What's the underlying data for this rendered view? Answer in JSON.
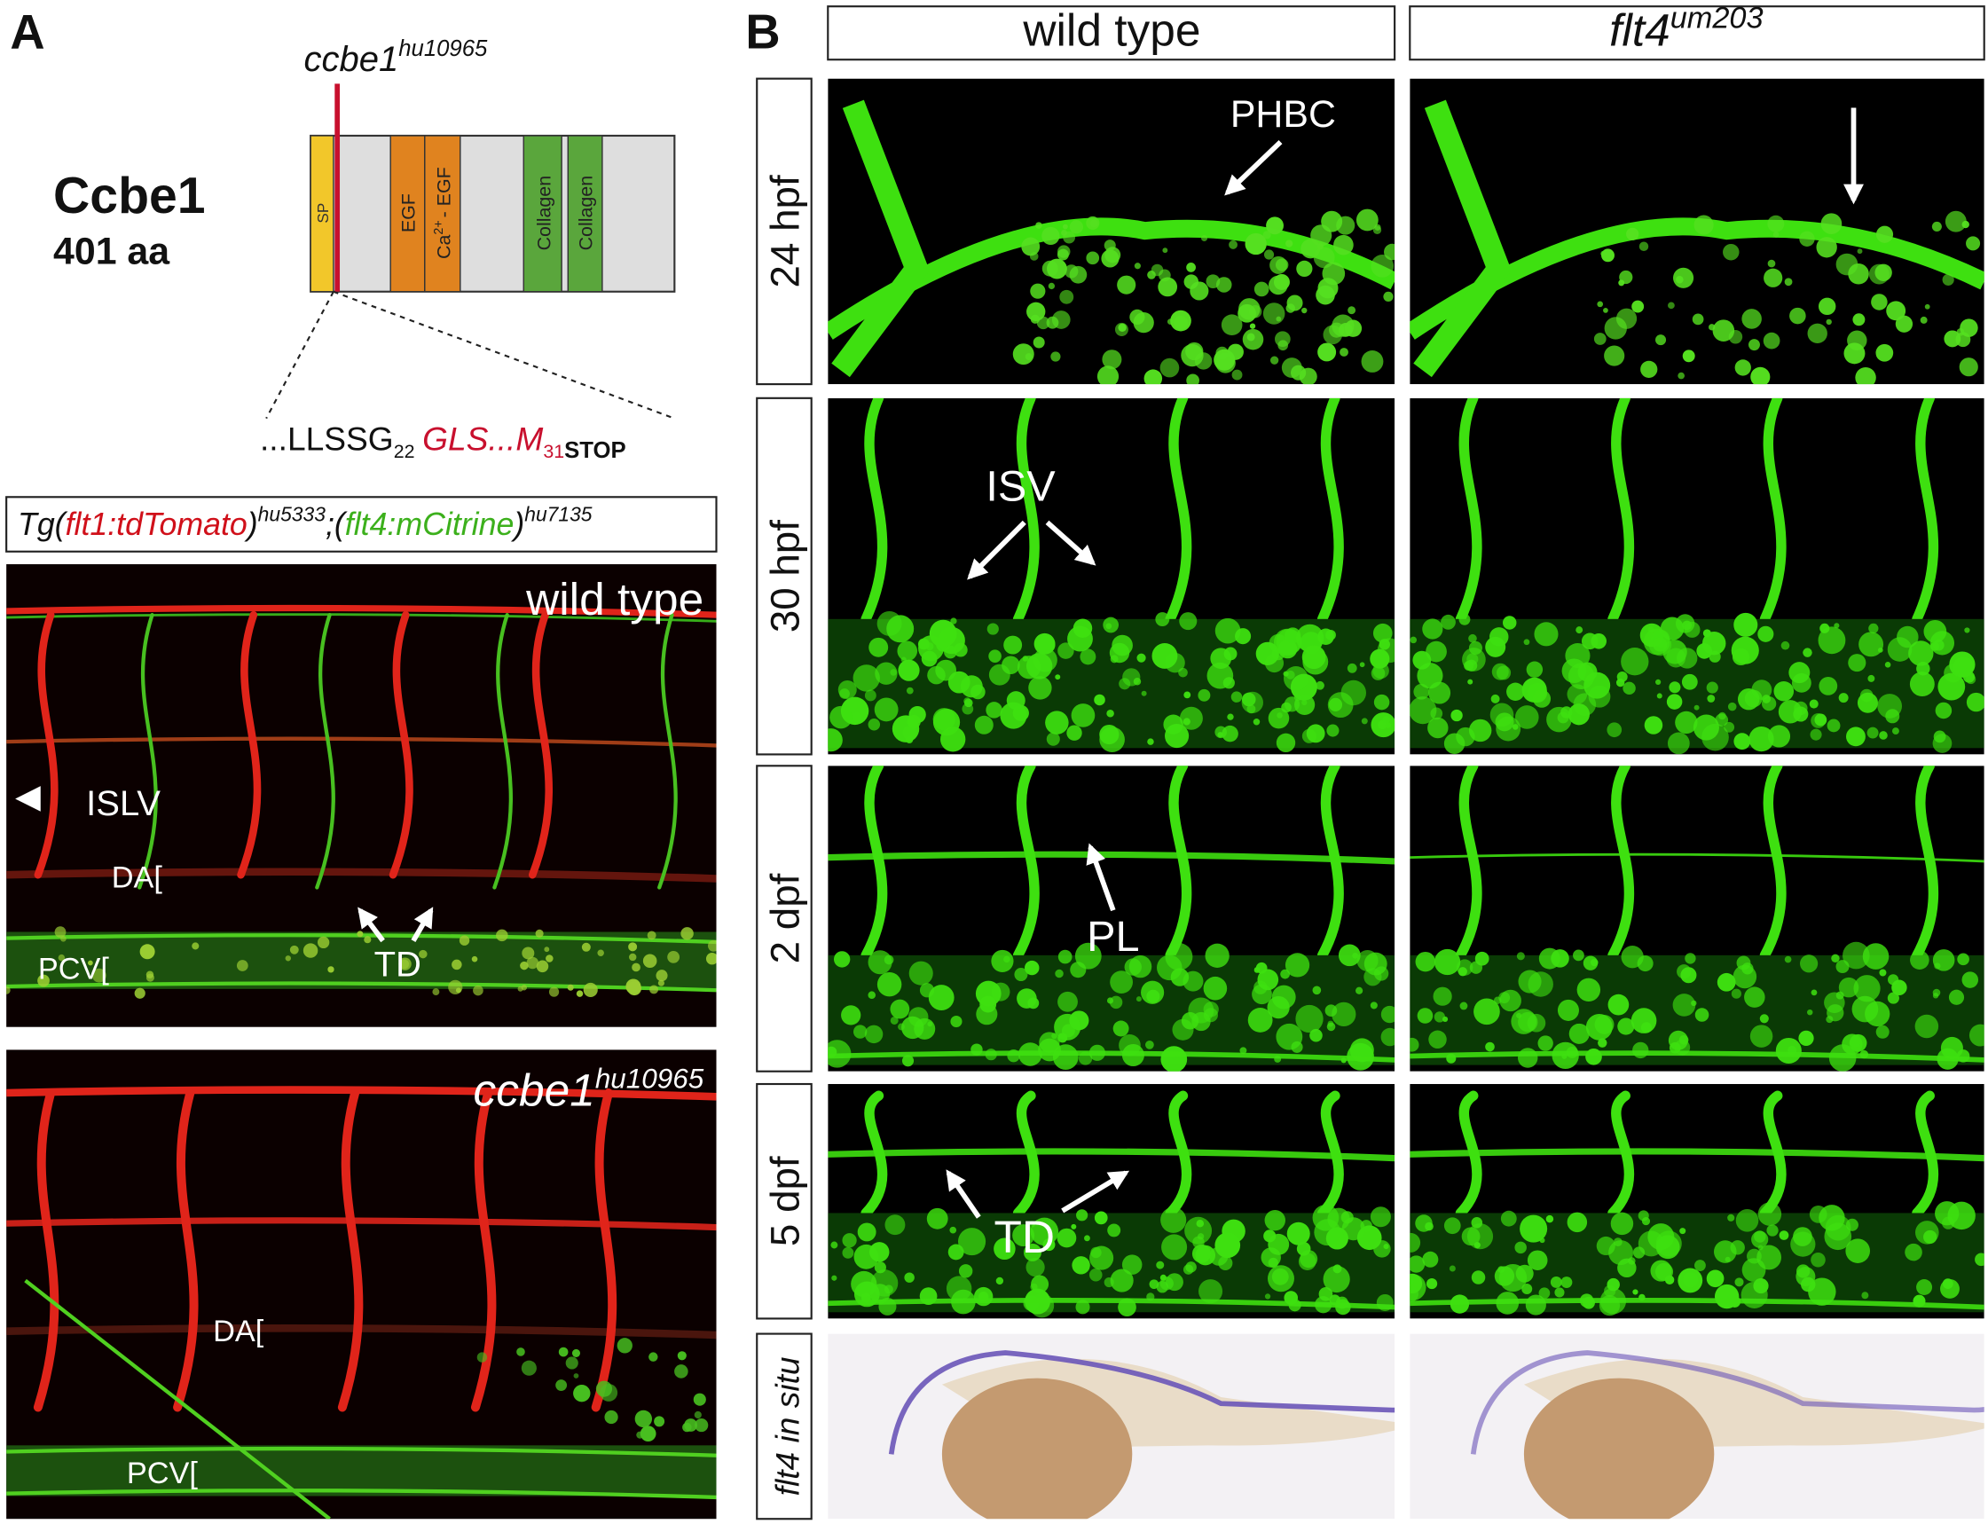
{
  "panel_a": {
    "label": "A",
    "allele": {
      "gene": "ccbe1",
      "superscript": "hu10965"
    },
    "protein_name": "Ccbe1",
    "protein_length": "401 aa",
    "domains": {
      "signal_peptide": "SP",
      "egf": "EGF",
      "ca_egf": {
        "prefix": "Ca",
        "superscript": "2+",
        "suffix": "- EGF"
      },
      "collagen": [
        "Collagen",
        "Collagen"
      ]
    },
    "sequence": {
      "prefix": "...LLSSG",
      "position_1": "22",
      "mutant": "GLS...M",
      "position_2": "31",
      "stop": "STOP"
    },
    "transgene": {
      "prefix": "Tg(",
      "reporter_1": "flt1:tdTomato",
      "close_1": ")",
      "allele_1": "hu5333",
      "separator": ";(",
      "reporter_2": "flt4:mCitrine",
      "close_2": ")",
      "allele_2": "hu7135"
    },
    "wild_type_image": {
      "title": "wild type",
      "islv": "ISLV",
      "da": "DA[",
      "pcv": "PCV[",
      "td": "TD"
    },
    "mutant_image": {
      "title": {
        "gene": "ccbe1",
        "superscript": "hu10965"
      },
      "da": "DA[",
      "pcv": "PCV["
    }
  },
  "panel_b": {
    "label": "B",
    "columns": [
      {
        "text": "wild type"
      },
      {
        "gene": "flt4",
        "superscript": "um203"
      }
    ],
    "rows": [
      "24 hpf",
      "30 hpf",
      "2 dpf",
      "5 dpf",
      "flt4 in situ"
    ],
    "annotations": {
      "phbc": "PHBC",
      "isv": "ISV",
      "pl": "PL",
      "td": "TD"
    }
  }
}
